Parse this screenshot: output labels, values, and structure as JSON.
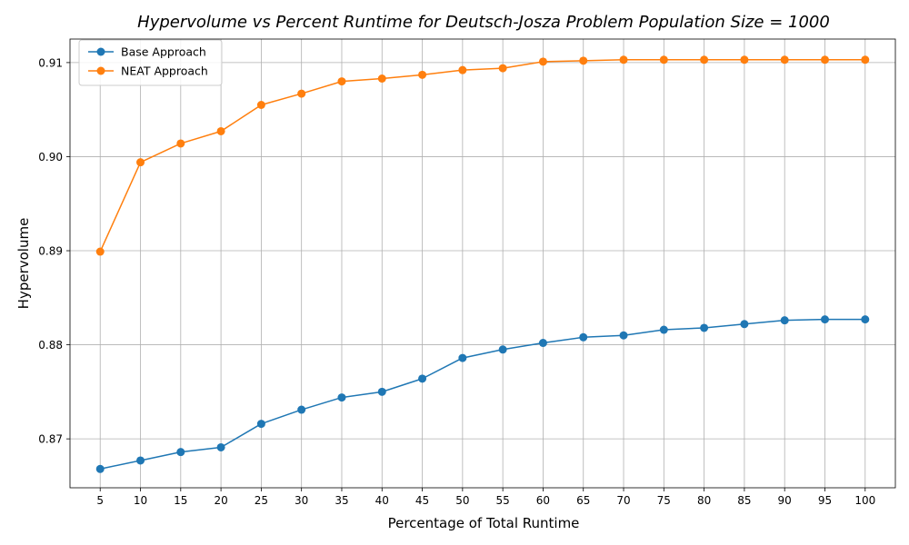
{
  "chart_data": {
    "type": "line",
    "title": "Hypervolume vs Percent Runtime for Deutsch-Josza Problem Population Size = 1000",
    "xlabel": "Percentage of Total Runtime",
    "ylabel": "Hypervolume",
    "x": [
      5,
      10,
      15,
      20,
      25,
      30,
      35,
      40,
      45,
      50,
      55,
      60,
      65,
      70,
      75,
      80,
      85,
      90,
      95,
      100
    ],
    "x_tick_labels": [
      "5",
      "10",
      "15",
      "20",
      "25",
      "30",
      "35",
      "40",
      "45",
      "50",
      "55",
      "60",
      "65",
      "70",
      "75",
      "80",
      "85",
      "90",
      "95",
      "100"
    ],
    "y_ticks": [
      0.87,
      0.88,
      0.89,
      0.9,
      0.91
    ],
    "y_tick_labels": [
      "0.87",
      "0.88",
      "0.89",
      "0.90",
      "0.91"
    ],
    "ylim": [
      0.8648,
      0.9125
    ],
    "grid": true,
    "legend_position": "top-left",
    "series": [
      {
        "name": "Base Approach",
        "color": "#1f77b4",
        "marker": "circle",
        "values": [
          0.8668,
          0.8677,
          0.8686,
          0.8691,
          0.8716,
          0.8731,
          0.8744,
          0.875,
          0.8764,
          0.8786,
          0.8795,
          0.8802,
          0.8808,
          0.881,
          0.8816,
          0.8818,
          0.8822,
          0.8826,
          0.8827,
          0.8827
        ]
      },
      {
        "name": "NEAT Approach",
        "color": "#ff7f0e",
        "marker": "circle",
        "values": [
          0.8899,
          0.8994,
          0.9014,
          0.9027,
          0.9055,
          0.9067,
          0.908,
          0.9083,
          0.9087,
          0.9092,
          0.9094,
          0.9101,
          0.9102,
          0.9103,
          0.9103,
          0.9103,
          0.9103,
          0.9103,
          0.9103,
          0.9103
        ]
      }
    ]
  }
}
